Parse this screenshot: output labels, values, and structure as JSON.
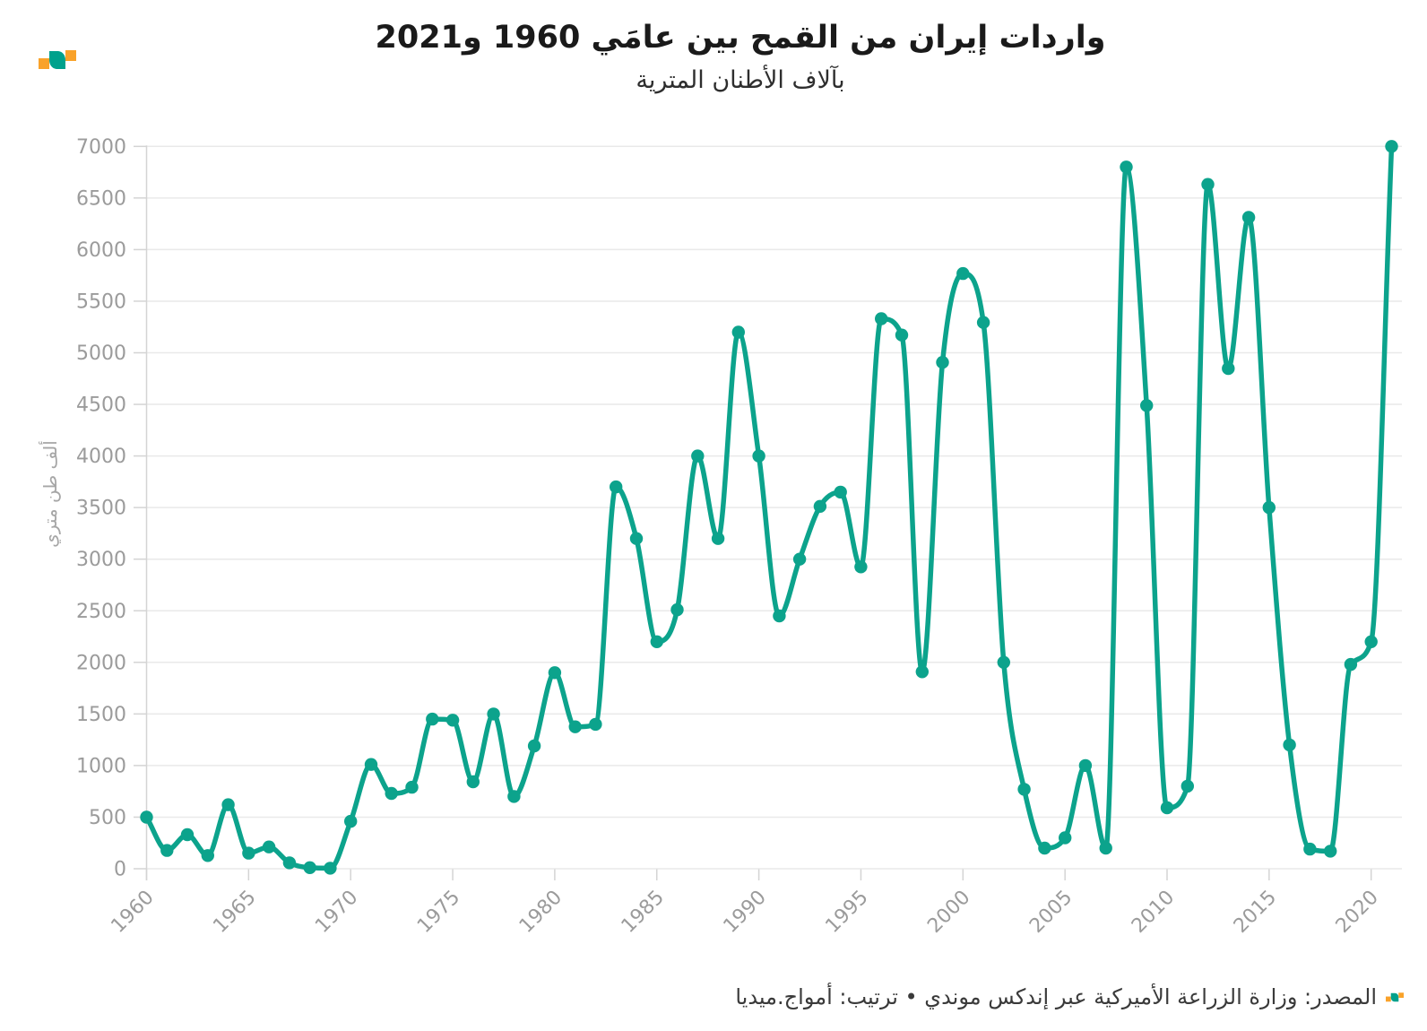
{
  "header": {
    "title": "واردات إيران من القمح بين عامَي 1960 و2021",
    "subtitle": "بآلاف الأطنان المترية"
  },
  "footer": {
    "source": "المصدر: وزارة الزراعة الأميركية عبر إندكس موندي • ترتيب: أمواج.ميديا"
  },
  "colors": {
    "line": "#0ca38c",
    "grid": "#e9e9e9",
    "axis": "#d4d4d4",
    "tick_text": "#9b9b9b",
    "title_text": "#1a1a1a",
    "logo_orange": "#f9a22a",
    "logo_teal": "#00a18c"
  },
  "chart_data": {
    "type": "line",
    "title": "واردات إيران من القمح بين عامَي 1960 و2021",
    "subtitle": "بآلاف الأطنان المترية",
    "xlabel": "",
    "ylabel": "ألف طن متري",
    "ylim": [
      0,
      7000
    ],
    "ytick_step": 500,
    "xticks": [
      1960,
      1965,
      1970,
      1975,
      1980,
      1985,
      1990,
      1995,
      2000,
      2005,
      2010,
      2015,
      2020
    ],
    "grid": "horizontal",
    "legend": "none",
    "x": [
      1960,
      1961,
      1962,
      1963,
      1964,
      1965,
      1966,
      1967,
      1968,
      1969,
      1970,
      1971,
      1972,
      1973,
      1974,
      1975,
      1976,
      1977,
      1978,
      1979,
      1980,
      1981,
      1982,
      1983,
      1984,
      1985,
      1986,
      1987,
      1988,
      1989,
      1990,
      1991,
      1992,
      1993,
      1994,
      1995,
      1996,
      1997,
      1998,
      1999,
      2000,
      2001,
      2002,
      2003,
      2004,
      2005,
      2006,
      2007,
      2008,
      2009,
      2010,
      2011,
      2012,
      2013,
      2014,
      2015,
      2016,
      2017,
      2018,
      2019,
      2020,
      2021
    ],
    "values": [
      500,
      177,
      330,
      128,
      620,
      151,
      211,
      57,
      10,
      5,
      460,
      1010,
      730,
      790,
      1450,
      1440,
      843,
      1500,
      700,
      1190,
      1900,
      1375,
      1400,
      3700,
      3200,
      2200,
      2510,
      4000,
      3200,
      5200,
      4000,
      2450,
      3000,
      3512,
      3650,
      2925,
      5330,
      5172,
      1909,
      4907,
      5768,
      5294,
      2000,
      770,
      200,
      300,
      1000,
      200,
      6800,
      4489,
      591,
      800,
      6632,
      4848,
      6312,
      3500,
      1200,
      190,
      170,
      1980,
      2200,
      7000
    ]
  }
}
